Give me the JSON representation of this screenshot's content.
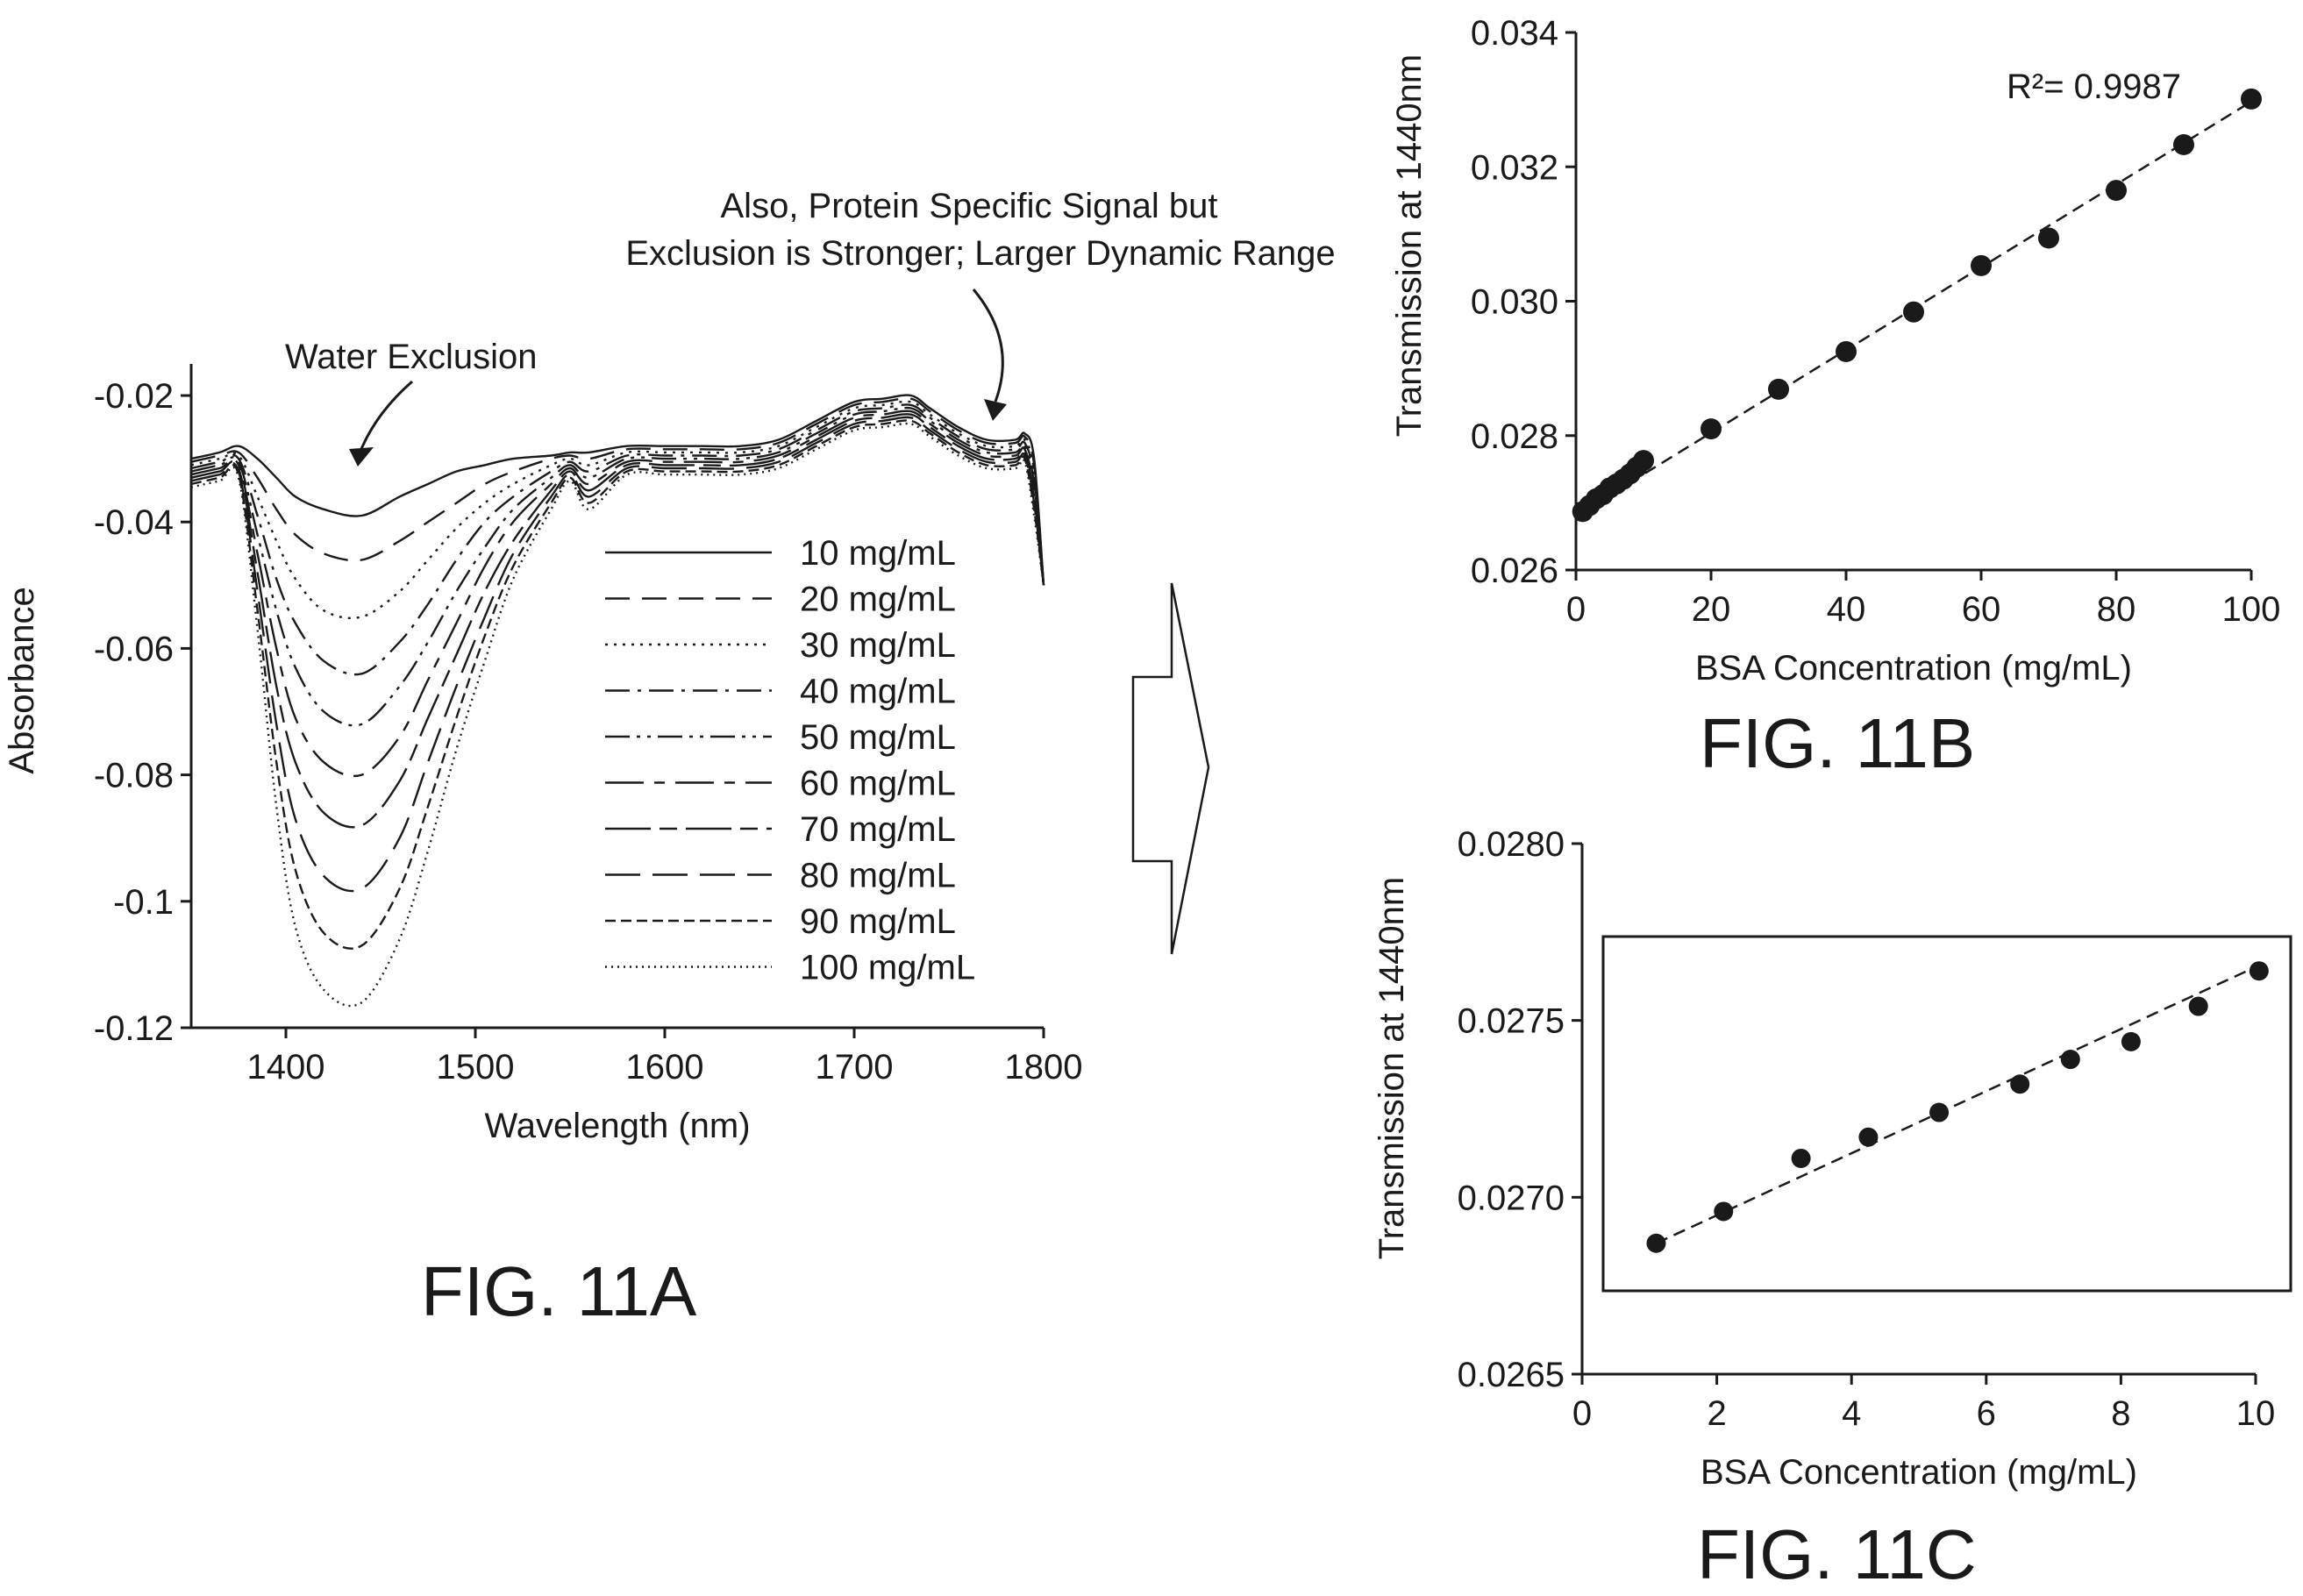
{
  "chart_data": [
    {
      "id": "fig11a",
      "type": "line",
      "figure_label": "FIG. 11A",
      "xlabel": "Wavelength (nm)",
      "ylabel": "Absorbance",
      "xlim": [
        1350,
        1800
      ],
      "ylim": [
        -0.12,
        -0.015
      ],
      "xticks": [
        1400,
        1500,
        1600,
        1700,
        1800
      ],
      "yticks": [
        -0.02,
        -0.04,
        -0.06,
        -0.08,
        -0.1,
        -0.12
      ],
      "ytick_labels": [
        "-0.02",
        "-0.04",
        "-0.06",
        "-0.08",
        "-0.1",
        "-0.12"
      ],
      "grid": false,
      "legend_position": "center-right",
      "annotations": {
        "water": "Water Exclusion",
        "protein_line1": "Also, Protein Specific Signal but",
        "protein_line2": "Exclusion is Stronger; Larger Dynamic Range"
      },
      "x": [
        1350,
        1365,
        1375,
        1385,
        1395,
        1405,
        1420,
        1440,
        1460,
        1475,
        1490,
        1505,
        1520,
        1540,
        1550,
        1560,
        1580,
        1600,
        1620,
        1640,
        1660,
        1680,
        1700,
        1715,
        1730,
        1740,
        1755,
        1770,
        1785,
        1790,
        1795,
        1800
      ],
      "series": [
        {
          "name": "10 mg/mL",
          "dash": "",
          "values": [
            -0.03,
            -0.029,
            -0.028,
            -0.03,
            -0.033,
            -0.036,
            -0.038,
            -0.039,
            -0.036,
            -0.034,
            -0.032,
            -0.031,
            -0.03,
            -0.0295,
            -0.029,
            -0.029,
            -0.028,
            -0.028,
            -0.028,
            -0.028,
            -0.027,
            -0.024,
            -0.021,
            -0.0205,
            -0.02,
            -0.022,
            -0.025,
            -0.027,
            -0.027,
            -0.026,
            -0.03,
            -0.05
          ]
        },
        {
          "name": "20 mg/mL",
          "dash": "28,14",
          "values": [
            -0.0305,
            -0.0295,
            -0.029,
            -0.033,
            -0.038,
            -0.042,
            -0.045,
            -0.046,
            -0.043,
            -0.04,
            -0.037,
            -0.034,
            -0.032,
            -0.03,
            -0.0295,
            -0.03,
            -0.0285,
            -0.0285,
            -0.0285,
            -0.0285,
            -0.0275,
            -0.0245,
            -0.0215,
            -0.021,
            -0.0205,
            -0.0225,
            -0.0255,
            -0.0275,
            -0.0275,
            -0.0265,
            -0.031,
            -0.05
          ]
        },
        {
          "name": "30 mg/mL",
          "dash": "3,7",
          "values": [
            -0.031,
            -0.03,
            -0.0295,
            -0.036,
            -0.043,
            -0.049,
            -0.054,
            -0.055,
            -0.051,
            -0.046,
            -0.041,
            -0.037,
            -0.034,
            -0.031,
            -0.03,
            -0.031,
            -0.029,
            -0.029,
            -0.029,
            -0.029,
            -0.028,
            -0.025,
            -0.022,
            -0.0215,
            -0.021,
            -0.023,
            -0.026,
            -0.028,
            -0.028,
            -0.027,
            -0.032,
            -0.05
          ]
        },
        {
          "name": "40 mg/mL",
          "dash": "28,9,4,9",
          "values": [
            -0.0315,
            -0.0305,
            -0.03,
            -0.039,
            -0.049,
            -0.056,
            -0.062,
            -0.064,
            -0.059,
            -0.053,
            -0.046,
            -0.04,
            -0.036,
            -0.032,
            -0.0305,
            -0.032,
            -0.0295,
            -0.0295,
            -0.0295,
            -0.0295,
            -0.0285,
            -0.0255,
            -0.0225,
            -0.022,
            -0.0215,
            -0.0235,
            -0.0265,
            -0.0285,
            -0.0285,
            -0.0275,
            -0.033,
            -0.05
          ]
        },
        {
          "name": "50 mg/mL",
          "dash": "28,8,4,8,4,8",
          "values": [
            -0.032,
            -0.031,
            -0.0305,
            -0.042,
            -0.054,
            -0.063,
            -0.07,
            -0.072,
            -0.066,
            -0.059,
            -0.051,
            -0.044,
            -0.038,
            -0.033,
            -0.031,
            -0.033,
            -0.03,
            -0.03,
            -0.03,
            -0.03,
            -0.029,
            -0.026,
            -0.023,
            -0.0225,
            -0.022,
            -0.024,
            -0.027,
            -0.029,
            -0.029,
            -0.028,
            -0.034,
            -0.05
          ]
        },
        {
          "name": "60 mg/mL",
          "dash": "44,12,12,12",
          "values": [
            -0.0325,
            -0.0315,
            -0.031,
            -0.045,
            -0.06,
            -0.071,
            -0.078,
            -0.08,
            -0.074,
            -0.065,
            -0.056,
            -0.047,
            -0.04,
            -0.034,
            -0.0315,
            -0.034,
            -0.0305,
            -0.0305,
            -0.0305,
            -0.0305,
            -0.0295,
            -0.0265,
            -0.0235,
            -0.023,
            -0.0225,
            -0.0245,
            -0.0275,
            -0.0295,
            -0.0295,
            -0.0285,
            -0.035,
            -0.05
          ]
        },
        {
          "name": "70 mg/mL",
          "dash": "52,10,20,10",
          "values": [
            -0.033,
            -0.032,
            -0.0315,
            -0.048,
            -0.066,
            -0.078,
            -0.086,
            -0.088,
            -0.081,
            -0.071,
            -0.061,
            -0.051,
            -0.043,
            -0.035,
            -0.032,
            -0.035,
            -0.031,
            -0.031,
            -0.031,
            -0.031,
            -0.03,
            -0.027,
            -0.024,
            -0.0235,
            -0.023,
            -0.025,
            -0.028,
            -0.03,
            -0.03,
            -0.029,
            -0.036,
            -0.05
          ]
        },
        {
          "name": "80 mg/mL",
          "dash": "40,14",
          "values": [
            -0.0335,
            -0.0325,
            -0.032,
            -0.051,
            -0.072,
            -0.087,
            -0.096,
            -0.098,
            -0.09,
            -0.078,
            -0.066,
            -0.055,
            -0.045,
            -0.036,
            -0.0325,
            -0.036,
            -0.0315,
            -0.0315,
            -0.0315,
            -0.0315,
            -0.0305,
            -0.0275,
            -0.0245,
            -0.024,
            -0.0235,
            -0.0255,
            -0.0285,
            -0.0305,
            -0.0305,
            -0.0295,
            -0.037,
            -0.05
          ]
        },
        {
          "name": "90 mg/mL",
          "dash": "12,6",
          "values": [
            -0.034,
            -0.033,
            -0.0325,
            -0.054,
            -0.078,
            -0.095,
            -0.105,
            -0.107,
            -0.098,
            -0.085,
            -0.071,
            -0.058,
            -0.047,
            -0.037,
            -0.033,
            -0.037,
            -0.032,
            -0.032,
            -0.032,
            -0.032,
            -0.031,
            -0.028,
            -0.025,
            -0.0245,
            -0.024,
            -0.026,
            -0.029,
            -0.031,
            -0.031,
            -0.03,
            -0.038,
            -0.05
          ]
        },
        {
          "name": "100 mg/mL",
          "dash": "2,5",
          "values": [
            -0.0345,
            -0.0335,
            -0.033,
            -0.057,
            -0.085,
            -0.104,
            -0.114,
            -0.116,
            -0.106,
            -0.092,
            -0.076,
            -0.062,
            -0.049,
            -0.038,
            -0.0335,
            -0.038,
            -0.0325,
            -0.0325,
            -0.0325,
            -0.0325,
            -0.0315,
            -0.0285,
            -0.0255,
            -0.025,
            -0.0245,
            -0.0265,
            -0.0295,
            -0.0315,
            -0.0315,
            -0.0305,
            -0.039,
            -0.05
          ]
        }
      ]
    },
    {
      "id": "fig11b",
      "type": "scatter",
      "figure_label": "FIG. 11B",
      "xlabel": "BSA Concentration (mg/mL)",
      "ylabel": "Transmission at 1440nm",
      "xlim": [
        0,
        100
      ],
      "ylim": [
        0.026,
        0.034
      ],
      "xticks": [
        0,
        20,
        40,
        60,
        80,
        100
      ],
      "yticks": [
        0.026,
        0.028,
        0.03,
        0.032,
        0.034
      ],
      "ytick_labels": [
        "0.026",
        "0.028",
        "0.030",
        "0.032",
        "0.034"
      ],
      "annotation": "R²= 0.9987",
      "fit_line": {
        "style": "dashed",
        "from": [
          0.5,
          0.02684
        ],
        "to": [
          100,
          0.03297
        ]
      },
      "x": [
        1,
        2,
        3,
        4,
        5,
        6,
        7,
        8,
        9,
        10,
        20,
        30,
        40,
        50,
        60,
        70,
        80,
        90,
        100
      ],
      "y": [
        0.02687,
        0.02696,
        0.02706,
        0.02712,
        0.02722,
        0.02728,
        0.02735,
        0.02743,
        0.02753,
        0.02763,
        0.0281,
        0.02869,
        0.02925,
        0.02984,
        0.03053,
        0.03094,
        0.03165,
        0.03233,
        0.03301
      ]
    },
    {
      "id": "fig11c",
      "type": "scatter",
      "figure_label": "FIG. 11C",
      "xlabel": "BSA Concentration (mg/mL)",
      "ylabel": "Transmission at 1440nm",
      "xlim": [
        0,
        10
      ],
      "ylim": [
        0.0265,
        0.028
      ],
      "xticks": [
        0,
        2,
        4,
        6,
        8,
        10
      ],
      "yticks": [
        0.0265,
        0.027,
        0.0275,
        0.028
      ],
      "ytick_labels": [
        "0.0265",
        "0.0270",
        "0.0275",
        "0.0280"
      ],
      "fit_line": {
        "style": "dashed",
        "from": [
          1.1,
          0.02687
        ],
        "to": [
          10.1,
          0.02766
        ]
      },
      "x": [
        1.1,
        2.1,
        3.25,
        4.25,
        5.3,
        6.5,
        7.25,
        8.15,
        9.15,
        10.05
      ],
      "y": [
        0.02687,
        0.02696,
        0.02711,
        0.02717,
        0.02724,
        0.02732,
        0.02739,
        0.02744,
        0.02754,
        0.02764
      ]
    }
  ]
}
